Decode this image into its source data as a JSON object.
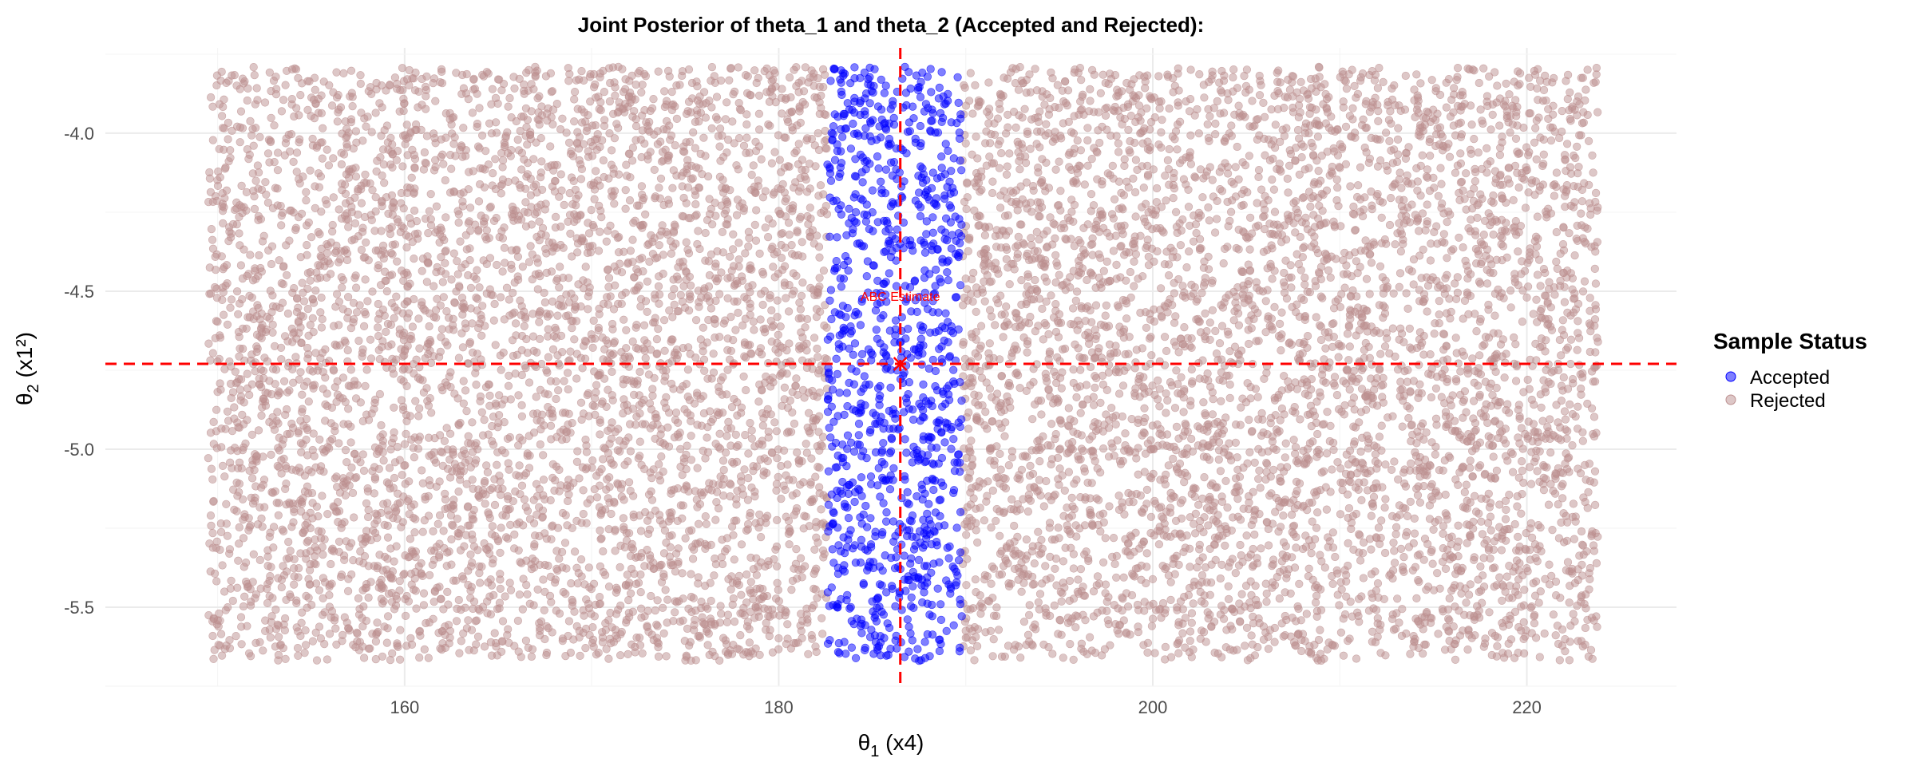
{
  "chart_data": {
    "type": "scatter",
    "title": "Joint Posterior of theta_1 and theta_2 (Accepted and Rejected):",
    "xlabel": {
      "greek": "θ",
      "sub": "1",
      "rest": " (x4)"
    },
    "ylabel": {
      "greek": "θ",
      "sub": "2",
      "rest": " (x1²)"
    },
    "xlim": [
      144,
      228
    ],
    "ylim": [
      -5.75,
      -3.73
    ],
    "x_ticks": [
      160,
      180,
      200,
      220
    ],
    "x_tick_labels": [
      "160",
      "180",
      "200",
      "220"
    ],
    "y_ticks": [
      -4.0,
      -4.5,
      -5.0,
      -5.5
    ],
    "y_tick_labels": [
      "-4.0",
      "-4.5",
      "-5.0",
      "-5.5"
    ],
    "grid": true,
    "legend": {
      "title": "Sample Status",
      "position": "right",
      "entries": [
        {
          "label": "Accepted",
          "color": "#0000FF"
        },
        {
          "label": "Rejected",
          "color": "#BC8F8F"
        }
      ]
    },
    "series": [
      {
        "name": "Rejected",
        "color": "#BC8F8F",
        "count": 9000,
        "x_range": [
          149.5,
          223.8
        ],
        "y_range": [
          -5.67,
          -3.79
        ],
        "exclude_x_range": [
          182.6,
          189.8
        ]
      },
      {
        "name": "Accepted",
        "color": "#0000FF",
        "count": 1000,
        "x_range": [
          182.6,
          189.8
        ],
        "y_range": [
          -5.67,
          -3.79
        ]
      }
    ],
    "reference_lines": {
      "x": 186.5,
      "y": -4.73,
      "color": "#FF0000",
      "style": "dashed"
    },
    "annotation": {
      "text": "ABC Estimate",
      "x": 186.5,
      "y": -4.53,
      "color": "#FF0000"
    },
    "estimate_point": {
      "x": 186.5,
      "y": -4.73
    }
  }
}
